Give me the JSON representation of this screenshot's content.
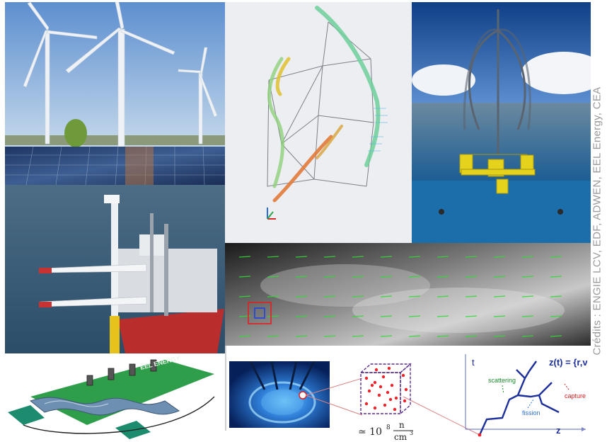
{
  "credits": "Crédits : ENGIE LCV, EDF, ADWEN, EEL Energy, CEA",
  "eel_logo_text": "EEL ENERGY",
  "formula": {
    "label": "z(t) = {r,v}",
    "t_axis": "t",
    "z_axis": "z",
    "scattering": "scattering",
    "fission": "fission",
    "capture": "capture",
    "density_prefix": "≃ 10",
    "density_exp": "8",
    "density_num": "n",
    "density_den": "cm",
    "density_den_exp": "3"
  },
  "colors": {
    "sky": "#7fa9d6",
    "sea": "#4a6f8c",
    "solar": "#203a6b",
    "floater": "#e5d21c",
    "reactor": "#1b4fa5",
    "particle": "#e8242c"
  }
}
